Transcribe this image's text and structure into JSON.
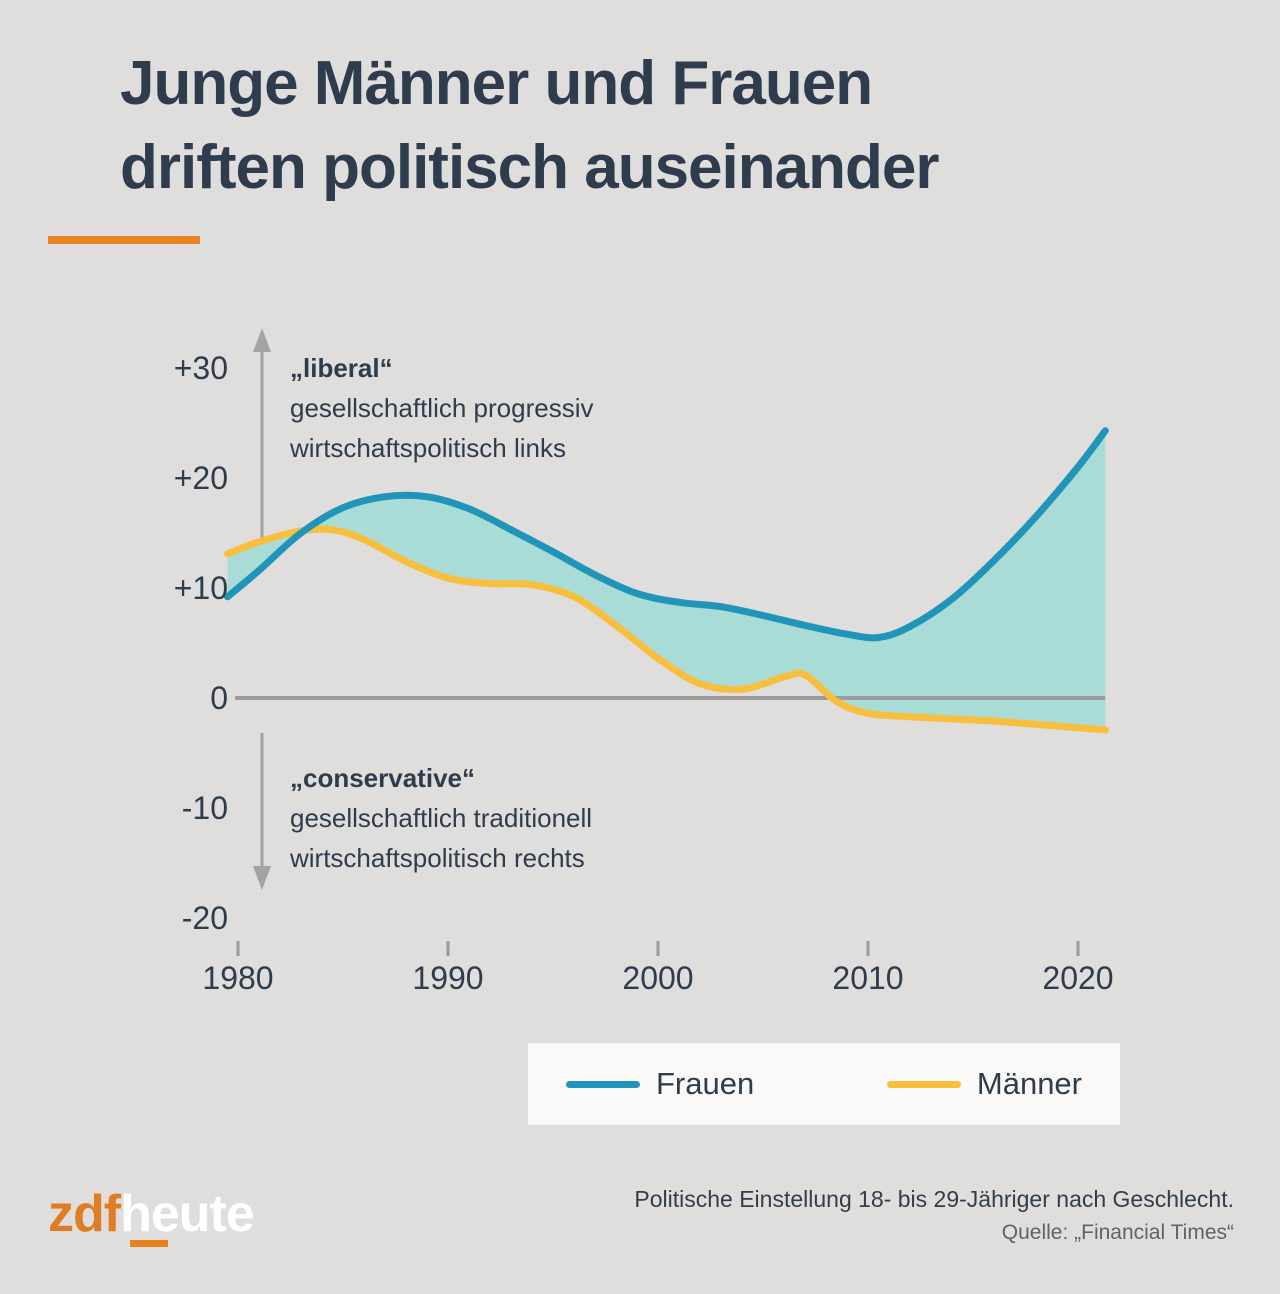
{
  "title": {
    "line1": "Junge Männer und Frauen",
    "line2": "driften politisch auseinander"
  },
  "annotations": {
    "liberal": {
      "head": "„liberal“",
      "line2": "gesellschaftlich progressiv",
      "line3": "wirtschaftspolitisch links"
    },
    "conservative": {
      "head": "„conservative“",
      "line2": "gesellschaftlich traditionell",
      "line3": "wirtschaftspolitisch rechts"
    }
  },
  "legend": {
    "items": [
      {
        "label": "Frauen",
        "color": "#2095b9"
      },
      {
        "label": "Männer",
        "color": "#f8be3e"
      }
    ]
  },
  "footer": {
    "note": "Politische Einstellung 18- bis 29-Jähriger nach Geschlecht.",
    "source": "Quelle: „Financial Times“"
  },
  "logo": {
    "part1": "zdf",
    "part2": "heute"
  },
  "colors": {
    "background": "#dfdedc",
    "text_dark": "#2e3c4e",
    "accent_orange": "#e8821f",
    "frauen_blue": "#2095b9",
    "maenner_yellow": "#f8be3e",
    "area_fill": "#a9dcd7",
    "zero_line_gray": "#9b9b99",
    "arrow_gray": "#a3a3a1",
    "source_gray": "#5f6368",
    "legend_background": "#faf9f7"
  },
  "chart_data": {
    "type": "area",
    "title": "",
    "xlabel": "",
    "ylabel": "",
    "x_unit": "year",
    "x_range": [
      1979.5,
      2021.3
    ],
    "y_range": [
      -20,
      30
    ],
    "baseline": 0,
    "grid": false,
    "legend_position": "bottom",
    "y_ticks": [
      {
        "value": 30,
        "label": "+30"
      },
      {
        "value": 20,
        "label": "+20"
      },
      {
        "value": 10,
        "label": "+10"
      },
      {
        "value": 0,
        "label": "0"
      },
      {
        "value": -10,
        "label": "-10"
      },
      {
        "value": -20,
        "label": "-20"
      }
    ],
    "x_ticks": [
      {
        "value": 1980,
        "label": "1980"
      },
      {
        "value": 1990,
        "label": "1990"
      },
      {
        "value": 2000,
        "label": "2000"
      },
      {
        "value": 2010,
        "label": "2010"
      },
      {
        "value": 2020,
        "label": "2020"
      }
    ],
    "series": [
      {
        "name": "Frauen",
        "color": "#2095b9",
        "points": [
          [
            1979.5,
            9.2
          ],
          [
            1981,
            11.6
          ],
          [
            1983,
            15.0
          ],
          [
            1985,
            17.3
          ],
          [
            1987,
            18.3
          ],
          [
            1989,
            18.3
          ],
          [
            1991,
            17.2
          ],
          [
            1993,
            15.3
          ],
          [
            1995,
            13.3
          ],
          [
            1997,
            11.2
          ],
          [
            1999,
            9.5
          ],
          [
            2001,
            8.7
          ],
          [
            2003,
            8.3
          ],
          [
            2005,
            7.5
          ],
          [
            2007,
            6.6
          ],
          [
            2009,
            5.8
          ],
          [
            2010.5,
            5.5
          ],
          [
            2012,
            6.5
          ],
          [
            2014,
            9.0
          ],
          [
            2016,
            12.5
          ],
          [
            2018,
            16.5
          ],
          [
            2020,
            21.0
          ],
          [
            2021.3,
            24.3
          ]
        ]
      },
      {
        "name": "Männer",
        "color": "#f8be3e",
        "points": [
          [
            1979.5,
            13.1
          ],
          [
            1981,
            14.2
          ],
          [
            1983,
            15.2
          ],
          [
            1984.5,
            15.3
          ],
          [
            1986,
            14.4
          ],
          [
            1988,
            12.4
          ],
          [
            1990,
            10.9
          ],
          [
            1992,
            10.4
          ],
          [
            1994,
            10.3
          ],
          [
            1996,
            9.2
          ],
          [
            1998,
            6.6
          ],
          [
            2000,
            3.6
          ],
          [
            2002,
            1.3
          ],
          [
            2004,
            0.8
          ],
          [
            2006,
            1.9
          ],
          [
            2007,
            2.1
          ],
          [
            2008.5,
            -0.3
          ],
          [
            2010,
            -1.4
          ],
          [
            2012,
            -1.7
          ],
          [
            2014,
            -1.9
          ],
          [
            2016,
            -2.1
          ],
          [
            2018,
            -2.4
          ],
          [
            2020,
            -2.7
          ],
          [
            2021.3,
            -2.9
          ]
        ]
      }
    ],
    "fill_between": {
      "upper": "Frauen",
      "lower": "Männer",
      "color": "#a9dcd7"
    }
  }
}
